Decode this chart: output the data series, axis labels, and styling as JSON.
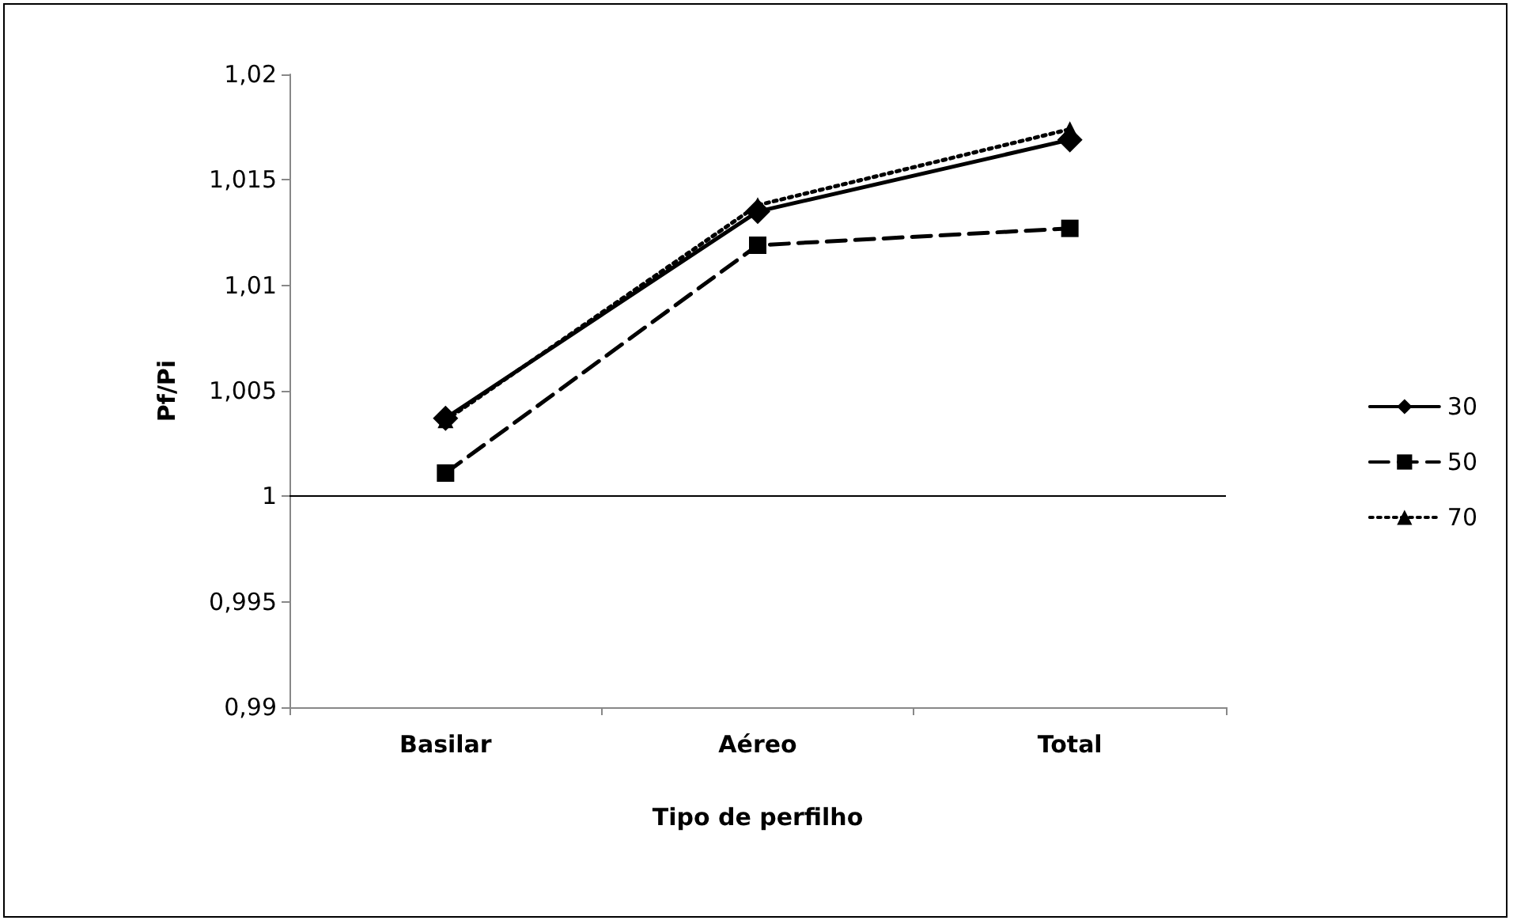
{
  "chart_data": {
    "type": "line",
    "xlabel": "Tipo de perfilho",
    "ylabel": "Pf/Pi",
    "categories": [
      "Basilar",
      "Aéreo",
      "Total"
    ],
    "series": [
      {
        "name": "30",
        "color": "#000000",
        "marker": "diamond",
        "line_style": "solid",
        "values": [
          1.0037,
          1.0135,
          1.0169
        ]
      },
      {
        "name": "50",
        "color": "#000000",
        "marker": "square",
        "line_style": "dashed",
        "values": [
          1.0011,
          1.0119,
          1.0127
        ]
      },
      {
        "name": "70",
        "color": "#000000",
        "marker": "triangle",
        "line_style": "dotted",
        "values": [
          1.0036,
          1.0138,
          1.0174
        ]
      }
    ],
    "ylim": [
      0.99,
      1.02
    ],
    "yticks": [
      {
        "value": 0.99,
        "label": "0,99"
      },
      {
        "value": 0.995,
        "label": "0,995"
      },
      {
        "value": 1,
        "label": "1"
      },
      {
        "value": 1.005,
        "label": "1,005"
      },
      {
        "value": 1.01,
        "label": "1,01"
      },
      {
        "value": 1.015,
        "label": "1,015"
      },
      {
        "value": 1.02,
        "label": "1,02"
      }
    ],
    "ref_lines": [
      {
        "axis": "y",
        "value": 1,
        "color": "#000000"
      }
    ],
    "grid": false,
    "legend": "right"
  }
}
